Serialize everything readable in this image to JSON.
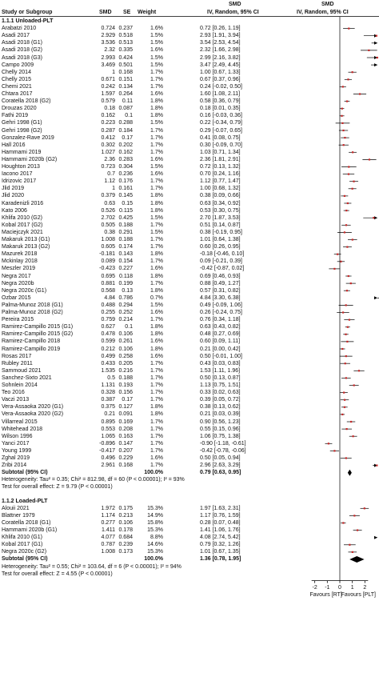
{
  "colors": {
    "marker": "#c62828",
    "line": "#000000",
    "axis": "#000000"
  },
  "headers": {
    "line1_left": "SMD",
    "line1_right": "SMD",
    "study": "Study or Subgroup",
    "smd": "SMD",
    "se": "SE",
    "weight": "Weight",
    "ci_col": "IV, Random, 95% CI",
    "plot_col": "IV, Random, 95% CI"
  },
  "chart_data": {
    "type": "forest",
    "xlim": [
      -3,
      3
    ],
    "x_ticks": [
      "-2",
      "-1",
      "0",
      "1",
      "2"
    ],
    "x_tick_values": [
      -2,
      -1,
      0,
      1,
      2
    ],
    "xlabel_left": "Favours [RT]",
    "xlabel_right": "Favours [PLT]",
    "groups": [
      {
        "title": "1.1.1 Unloaded-PLT",
        "studies": [
          {
            "name": "Arabatzi 2010",
            "smd": "0.724",
            "se": "0.237",
            "weight": "1.6%",
            "ci": "0.72 [0.26, 1.19]",
            "est": 0.72,
            "lo": 0.26,
            "hi": 1.19
          },
          {
            "name": "Asadi 2017",
            "smd": "2.929",
            "se": "0.518",
            "weight": "1.5%",
            "ci": "2.93 [1.91, 3.94]",
            "est": 2.93,
            "lo": 1.91,
            "hi": 3.94
          },
          {
            "name": "Asadi 2018 (G1)",
            "smd": "3.536",
            "se": "0.513",
            "weight": "1.5%",
            "ci": "3.54 [2.53, 4.54]",
            "est": 3.54,
            "lo": 2.53,
            "hi": 4.54
          },
          {
            "name": "Asadi 2018 (G2)",
            "smd": "2.32",
            "se": "0.335",
            "weight": "1.6%",
            "ci": "2.32 [1.66, 2.98]",
            "est": 2.32,
            "lo": 1.66,
            "hi": 2.98
          },
          {
            "name": "Asadi 2018 (G3)",
            "smd": "2.993",
            "se": "0.424",
            "weight": "1.5%",
            "ci": "2.99 [2.16, 3.82]",
            "est": 2.99,
            "lo": 2.16,
            "hi": 3.82
          },
          {
            "name": "Campo 2009",
            "smd": "3.469",
            "se": "0.501",
            "weight": "1.5%",
            "ci": "3.47 [2.49, 4.45]",
            "est": 3.47,
            "lo": 2.49,
            "hi": 4.45
          },
          {
            "name": "Chelly 2014",
            "smd": "1",
            "se": "0.168",
            "weight": "1.7%",
            "ci": "1.00 [0.67, 1.33]",
            "est": 1.0,
            "lo": 0.67,
            "hi": 1.33
          },
          {
            "name": "Chelly 2015",
            "smd": "0.671",
            "se": "0.151",
            "weight": "1.7%",
            "ci": "0.67 [0.37, 0.96]",
            "est": 0.67,
            "lo": 0.37,
            "hi": 0.96
          },
          {
            "name": "Chemi 2021",
            "smd": "0.242",
            "se": "0.134",
            "weight": "1.7%",
            "ci": "0.24 [-0.02, 0.50]",
            "est": 0.24,
            "lo": -0.02,
            "hi": 0.5
          },
          {
            "name": "Chtara 2017",
            "smd": "1.597",
            "se": "0.264",
            "weight": "1.6%",
            "ci": "1.60 [1.08, 2.11]",
            "est": 1.6,
            "lo": 1.08,
            "hi": 2.11
          },
          {
            "name": "Coratella 2018 (G2)",
            "smd": "0.579",
            "se": "0.11",
            "weight": "1.8%",
            "ci": "0.58 [0.36, 0.79]",
            "est": 0.58,
            "lo": 0.36,
            "hi": 0.79
          },
          {
            "name": "Drouzas 2020",
            "smd": "0.18",
            "se": "0.087",
            "weight": "1.8%",
            "ci": "0.18 [0.01, 0.35]",
            "est": 0.18,
            "lo": 0.01,
            "hi": 0.35
          },
          {
            "name": "Fathi 2019",
            "smd": "0.162",
            "se": "0.1",
            "weight": "1.8%",
            "ci": "0.16 [-0.03, 0.36]",
            "est": 0.16,
            "lo": -0.03,
            "hi": 0.36
          },
          {
            "name": "Gehri 1998 (G1)",
            "smd": "0.223",
            "se": "0.288",
            "weight": "1.5%",
            "ci": "0.22 [-0.34, 0.79]",
            "est": 0.22,
            "lo": -0.34,
            "hi": 0.79
          },
          {
            "name": "Gehri 1998 (G2)",
            "smd": "0.287",
            "se": "0.184",
            "weight": "1.7%",
            "ci": "0.29 [-0.07, 0.65]",
            "est": 0.29,
            "lo": -0.07,
            "hi": 0.65
          },
          {
            "name": "Gonzalez-Rave 2019",
            "smd": "0.412",
            "se": "0.17",
            "weight": "1.7%",
            "ci": "0.41 [0.08, 0.75]",
            "est": 0.41,
            "lo": 0.08,
            "hi": 0.75
          },
          {
            "name": "Hall 2016",
            "smd": "0.302",
            "se": "0.202",
            "weight": "1.7%",
            "ci": "0.30 [-0.09, 0.70]",
            "est": 0.3,
            "lo": -0.09,
            "hi": 0.7
          },
          {
            "name": "Hammami 2019",
            "smd": "1.027",
            "se": "0.162",
            "weight": "1.7%",
            "ci": "1.03 [0.71, 1.34]",
            "est": 1.03,
            "lo": 0.71,
            "hi": 1.34
          },
          {
            "name": "Hammami 2020b (G2)",
            "smd": "2.36",
            "se": "0.283",
            "weight": "1.6%",
            "ci": "2.36 [1.81, 2.91]",
            "est": 2.36,
            "lo": 1.81,
            "hi": 2.91
          },
          {
            "name": "Houghton 2013",
            "smd": "0.723",
            "se": "0.304",
            "weight": "1.5%",
            "ci": "0.72 [0.13, 1.32]",
            "est": 0.72,
            "lo": 0.13,
            "hi": 1.32
          },
          {
            "name": "Iacono 2017",
            "smd": "0.7",
            "se": "0.236",
            "weight": "1.6%",
            "ci": "0.70 [0.24, 1.16]",
            "est": 0.7,
            "lo": 0.24,
            "hi": 1.16
          },
          {
            "name": "Idrizovic 2017",
            "smd": "1.12",
            "se": "0.176",
            "weight": "1.7%",
            "ci": "1.12 [0.77, 1.47]",
            "est": 1.12,
            "lo": 0.77,
            "hi": 1.47
          },
          {
            "name": "Jlid 2019",
            "smd": "1",
            "se": "0.161",
            "weight": "1.7%",
            "ci": "1.00 [0.68, 1.32]",
            "est": 1.0,
            "lo": 0.68,
            "hi": 1.32
          },
          {
            "name": "Jlid 2020",
            "smd": "0.379",
            "se": "0.145",
            "weight": "1.8%",
            "ci": "0.38 [0.09, 0.66]",
            "est": 0.38,
            "lo": 0.09,
            "hi": 0.66
          },
          {
            "name": "Karadenizli 2016",
            "smd": "0.63",
            "se": "0.15",
            "weight": "1.8%",
            "ci": "0.63 [0.34, 0.92]",
            "est": 0.63,
            "lo": 0.34,
            "hi": 0.92
          },
          {
            "name": "Kato 2006",
            "smd": "0.526",
            "se": "0.115",
            "weight": "1.8%",
            "ci": "0.53 [0.30, 0.75]",
            "est": 0.53,
            "lo": 0.3,
            "hi": 0.75
          },
          {
            "name": "Khlifa 2010 (G2)",
            "smd": "2.702",
            "se": "0.425",
            "weight": "1.5%",
            "ci": "2.70 [1.87, 3.53]",
            "est": 2.7,
            "lo": 1.87,
            "hi": 3.53
          },
          {
            "name": "Kobal 2017 (G2)",
            "smd": "0.505",
            "se": "0.188",
            "weight": "1.7%",
            "ci": "0.51 [0.14, 0.87]",
            "est": 0.51,
            "lo": 0.14,
            "hi": 0.87
          },
          {
            "name": "Maciejczyk 2021",
            "smd": "0.38",
            "se": "0.291",
            "weight": "1.5%",
            "ci": "0.38 [-0.19, 0.95]",
            "est": 0.38,
            "lo": -0.19,
            "hi": 0.95
          },
          {
            "name": "Makaruk 2013 (G1)",
            "smd": "1.008",
            "se": "0.188",
            "weight": "1.7%",
            "ci": "1.01 [0.64, 1.38]",
            "est": 1.01,
            "lo": 0.64,
            "hi": 1.38
          },
          {
            "name": "Makaruk 2013 (G2)",
            "smd": "0.605",
            "se": "0.174",
            "weight": "1.7%",
            "ci": "0.60 [0.26, 0.95]",
            "est": 0.6,
            "lo": 0.26,
            "hi": 0.95
          },
          {
            "name": "Mazurek 2018",
            "smd": "-0.181",
            "se": "0.143",
            "weight": "1.8%",
            "ci": "-0.18 [-0.46, 0.10]",
            "est": -0.18,
            "lo": -0.46,
            "hi": 0.1
          },
          {
            "name": "Mckinlay 2018",
            "smd": "0.089",
            "se": "0.154",
            "weight": "1.7%",
            "ci": "0.09 [-0.21, 0.39]",
            "est": 0.09,
            "lo": -0.21,
            "hi": 0.39
          },
          {
            "name": "Meszler 2019",
            "smd": "-0.423",
            "se": "0.227",
            "weight": "1.6%",
            "ci": "-0.42 [-0.87, 0.02]",
            "est": -0.42,
            "lo": -0.87,
            "hi": 0.02
          },
          {
            "name": "Negra 2017",
            "smd": "0.695",
            "se": "0.118",
            "weight": "1.8%",
            "ci": "0.69 [0.46, 0.93]",
            "est": 0.69,
            "lo": 0.46,
            "hi": 0.93
          },
          {
            "name": "Negra 2020b",
            "smd": "0.881",
            "se": "0.199",
            "weight": "1.7%",
            "ci": "0.88 [0.49, 1.27]",
            "est": 0.88,
            "lo": 0.49,
            "hi": 1.27
          },
          {
            "name": "Negra 2020c (G1)",
            "smd": "0.568",
            "se": "0.13",
            "weight": "1.8%",
            "ci": "0.57 [0.31, 0.82]",
            "est": 0.57,
            "lo": 0.31,
            "hi": 0.82
          },
          {
            "name": "Ozbar 2015",
            "smd": "4.84",
            "se": "0.786",
            "weight": "0.7%",
            "ci": "4.84 [3.30, 6.38]",
            "est": 4.84,
            "lo": 3.3,
            "hi": 6.38
          },
          {
            "name": "Palma-Munoz 2018 (G1)",
            "smd": "0.488",
            "se": "0.294",
            "weight": "1.5%",
            "ci": "0.49 [-0.09, 1.06]",
            "est": 0.49,
            "lo": -0.09,
            "hi": 1.06
          },
          {
            "name": "Palma-Munoz 2018 (G2)",
            "smd": "0.255",
            "se": "0.252",
            "weight": "1.6%",
            "ci": "0.26 [-0.24, 0.75]",
            "est": 0.26,
            "lo": -0.24,
            "hi": 0.75
          },
          {
            "name": "Pereira 2015",
            "smd": "0.759",
            "se": "0.214",
            "weight": "1.7%",
            "ci": "0.76 [0.34, 1.18]",
            "est": 0.76,
            "lo": 0.34,
            "hi": 1.18
          },
          {
            "name": "Ramirez-Campillo 2015 (G1)",
            "smd": "0.627",
            "se": "0.1",
            "weight": "1.8%",
            "ci": "0.63 [0.43, 0.82]",
            "est": 0.63,
            "lo": 0.43,
            "hi": 0.82
          },
          {
            "name": "Ramirez-Campillo 2015 (G2)",
            "smd": "0.478",
            "se": "0.106",
            "weight": "1.8%",
            "ci": "0.48 [0.27, 0.69]",
            "est": 0.48,
            "lo": 0.27,
            "hi": 0.69
          },
          {
            "name": "Ramirez-Campillo 2018",
            "smd": "0.599",
            "se": "0.261",
            "weight": "1.6%",
            "ci": "0.60 [0.09, 1.11]",
            "est": 0.6,
            "lo": 0.09,
            "hi": 1.11
          },
          {
            "name": "Ramirez-Campillo 2019",
            "smd": "0.212",
            "se": "0.106",
            "weight": "1.8%",
            "ci": "0.21 [0.00, 0.42]",
            "est": 0.21,
            "lo": 0.0,
            "hi": 0.42
          },
          {
            "name": "Rosas 2017",
            "smd": "0.499",
            "se": "0.258",
            "weight": "1.6%",
            "ci": "0.50 [-0.01, 1.00]",
            "est": 0.5,
            "lo": -0.01,
            "hi": 1.0
          },
          {
            "name": "Rubley 2011",
            "smd": "0.433",
            "se": "0.205",
            "weight": "1.7%",
            "ci": "0.43 [0.03, 0.83]",
            "est": 0.43,
            "lo": 0.03,
            "hi": 0.83
          },
          {
            "name": "Sammoud 2021",
            "smd": "1.535",
            "se": "0.216",
            "weight": "1.7%",
            "ci": "1.53 [1.11, 1.96]",
            "est": 1.53,
            "lo": 1.11,
            "hi": 1.96
          },
          {
            "name": "Sanchez-Sixto 2021",
            "smd": "0.5",
            "se": "0.188",
            "weight": "1.7%",
            "ci": "0.50 [0.13, 0.87]",
            "est": 0.5,
            "lo": 0.13,
            "hi": 0.87
          },
          {
            "name": "Sohnlein 2014",
            "smd": "1.131",
            "se": "0.193",
            "weight": "1.7%",
            "ci": "1.13 [0.75, 1.51]",
            "est": 1.13,
            "lo": 0.75,
            "hi": 1.51
          },
          {
            "name": "Teo 2016",
            "smd": "0.328",
            "se": "0.156",
            "weight": "1.7%",
            "ci": "0.33 [0.02, 0.63]",
            "est": 0.33,
            "lo": 0.02,
            "hi": 0.63
          },
          {
            "name": "Vaczi 2013",
            "smd": "0.387",
            "se": "0.17",
            "weight": "1.7%",
            "ci": "0.39 [0.05, 0.72]",
            "est": 0.39,
            "lo": 0.05,
            "hi": 0.72
          },
          {
            "name": "Vera-Assaoka 2020 (G1)",
            "smd": "0.375",
            "se": "0.127",
            "weight": "1.8%",
            "ci": "0.38 [0.13, 0.62]",
            "est": 0.38,
            "lo": 0.13,
            "hi": 0.62
          },
          {
            "name": "Vera-Assaoka 2020 (G2)",
            "smd": "0.21",
            "se": "0.091",
            "weight": "1.8%",
            "ci": "0.21 [0.03, 0.39]",
            "est": 0.21,
            "lo": 0.03,
            "hi": 0.39
          },
          {
            "name": "Villarreal 2015",
            "smd": "0.895",
            "se": "0.169",
            "weight": "1.7%",
            "ci": "0.90 [0.56, 1.23]",
            "est": 0.9,
            "lo": 0.56,
            "hi": 1.23
          },
          {
            "name": "Whitehead 2018",
            "smd": "0.553",
            "se": "0.208",
            "weight": "1.7%",
            "ci": "0.55 [0.15, 0.96]",
            "est": 0.55,
            "lo": 0.15,
            "hi": 0.96
          },
          {
            "name": "Wilson 1996",
            "smd": "1.065",
            "se": "0.163",
            "weight": "1.7%",
            "ci": "1.06 [0.75, 1.38]",
            "est": 1.06,
            "lo": 0.75,
            "hi": 1.38
          },
          {
            "name": "Yanci 2017",
            "smd": "-0.896",
            "se": "0.147",
            "weight": "1.7%",
            "ci": "-0.90 [-1.18, -0.61]",
            "est": -0.9,
            "lo": -1.18,
            "hi": -0.61
          },
          {
            "name": "Young 1999",
            "smd": "-0.417",
            "se": "0.207",
            "weight": "1.7%",
            "ci": "-0.42 [-0.78, -0.06]",
            "est": -0.42,
            "lo": -0.78,
            "hi": -0.06
          },
          {
            "name": "Zghal 2019",
            "smd": "0.496",
            "se": "0.229",
            "weight": "1.6%",
            "ci": "0.50 [0.05, 0.94]",
            "est": 0.5,
            "lo": 0.05,
            "hi": 0.94
          },
          {
            "name": "Zribi 2014",
            "smd": "2.961",
            "se": "0.168",
            "weight": "1.7%",
            "ci": "2.96 [2.63, 3.29]",
            "est": 2.96,
            "lo": 2.63,
            "hi": 3.29
          }
        ],
        "subtotal": {
          "label": "Subtotal (95% CI)",
          "weight": "100.0%",
          "ci": "0.79 [0.63, 0.95]",
          "est": 0.79,
          "lo": 0.63,
          "hi": 0.95
        },
        "heterogeneity": "Heterogeneity: Tau² = 0.35; Chi² = 812.98, df = 60 (P < 0.00001); I² = 93%",
        "overall_effect": "Test for overall effect: Z = 9.79 (P < 0.00001)"
      },
      {
        "title": "1.1.2 Loaded-PLT",
        "studies": [
          {
            "name": "Alouii 2021",
            "smd": "1.972",
            "se": "0.175",
            "weight": "15.3%",
            "ci": "1.97 [1.63, 2.31]",
            "est": 1.97,
            "lo": 1.63,
            "hi": 2.31
          },
          {
            "name": "Blattner 1979",
            "smd": "1.174",
            "se": "0.213",
            "weight": "14.9%",
            "ci": "1.17 [0.76, 1.59]",
            "est": 1.17,
            "lo": 0.76,
            "hi": 1.59
          },
          {
            "name": "Coratella 2018 (G1)",
            "smd": "0.277",
            "se": "0.106",
            "weight": "15.8%",
            "ci": "0.28 [0.07, 0.48]",
            "est": 0.28,
            "lo": 0.07,
            "hi": 0.48
          },
          {
            "name": "Hammami 2020b (G1)",
            "smd": "1.411",
            "se": "0.178",
            "weight": "15.3%",
            "ci": "1.41 [1.06, 1.76]",
            "est": 1.41,
            "lo": 1.06,
            "hi": 1.76
          },
          {
            "name": "Khlifa 2010 (G1)",
            "smd": "4.077",
            "se": "0.684",
            "weight": "8.8%",
            "ci": "4.08 [2.74, 5.42]",
            "est": 4.08,
            "lo": 2.74,
            "hi": 5.42
          },
          {
            "name": "Kobal 2017 (G1)",
            "smd": "0.787",
            "se": "0.239",
            "weight": "14.6%",
            "ci": "0.79 [0.32, 1.26]",
            "est": 0.79,
            "lo": 0.32,
            "hi": 1.26
          },
          {
            "name": "Negra 2020c (G2)",
            "smd": "1.008",
            "se": "0.173",
            "weight": "15.3%",
            "ci": "1.01 [0.67, 1.35]",
            "est": 1.01,
            "lo": 0.67,
            "hi": 1.35
          }
        ],
        "subtotal": {
          "label": "Subtotal (95% CI)",
          "weight": "100.0%",
          "ci": "1.36 [0.78, 1.95]",
          "est": 1.36,
          "lo": 0.78,
          "hi": 1.95
        },
        "heterogeneity": "Heterogeneity: Tau² = 0.55; Chi² = 103.64, df = 6 (P < 0.00001); I² = 94%",
        "overall_effect": "Test for overall effect: Z = 4.55 (P < 0.00001)"
      }
    ]
  }
}
